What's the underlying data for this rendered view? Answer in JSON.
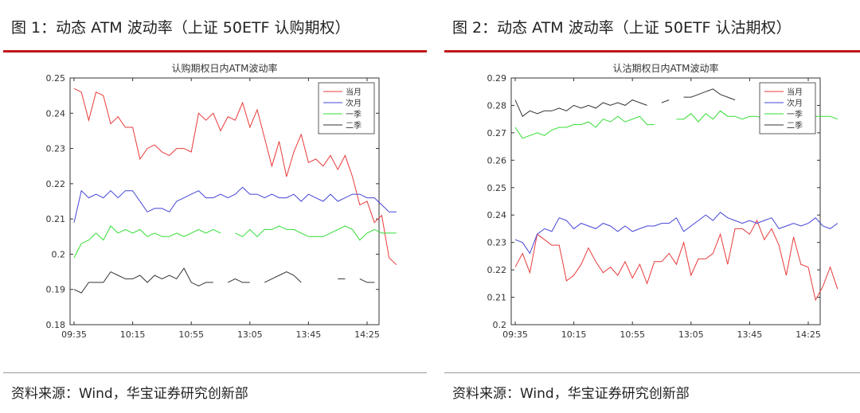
{
  "figures": [
    {
      "title": "图 1：动态 ATM 波动率（上证 50ETF 认购期权）",
      "source": "资料来源：Wind，华宝证券研究创新部"
    },
    {
      "title": "图 2：动态 ATM 波动率（上证 50ETF 认沽期权）",
      "source": "资料来源：Wind，华宝证券研究创新部"
    }
  ],
  "chart_data": [
    {
      "type": "line",
      "title": "认购期权日内ATM波动率",
      "x_ticks": [
        "09:35",
        "10:15",
        "10:55",
        "13:05",
        "13:45",
        "14:25"
      ],
      "x_tick_index": [
        0,
        8,
        16,
        24,
        32,
        40
      ],
      "ylim": [
        0.18,
        0.25
      ],
      "y_ticks": [
        "0.18",
        "0.19",
        "0.2",
        "0.21",
        "0.22",
        "0.23",
        "0.24",
        "0.25"
      ],
      "y_tick_values": [
        0.18,
        0.19,
        0.2,
        0.21,
        0.22,
        0.23,
        0.24,
        0.25
      ],
      "legend_position": "top-right",
      "grid": false,
      "series": [
        {
          "name": "当月",
          "color": "#e83a3a",
          "values": [
            0.247,
            0.246,
            0.238,
            0.246,
            0.245,
            0.237,
            0.239,
            0.236,
            0.236,
            0.227,
            0.23,
            0.231,
            0.229,
            0.228,
            0.23,
            0.23,
            0.229,
            0.24,
            0.238,
            0.24,
            0.235,
            0.239,
            0.238,
            0.243,
            0.236,
            0.241,
            0.233,
            0.225,
            0.232,
            0.222,
            0.229,
            0.234,
            0.226,
            0.227,
            0.225,
            0.228,
            0.224,
            0.228,
            0.222,
            0.214,
            0.215,
            0.209,
            0.211,
            0.199,
            0.197
          ]
        },
        {
          "name": "次月",
          "color": "#4444d8",
          "values": [
            0.209,
            0.218,
            0.216,
            0.217,
            0.216,
            0.218,
            0.216,
            0.218,
            0.218,
            0.215,
            0.212,
            0.213,
            0.213,
            0.212,
            0.215,
            0.216,
            0.217,
            0.218,
            0.216,
            0.216,
            0.217,
            0.216,
            0.217,
            0.219,
            0.217,
            0.217,
            0.216,
            0.217,
            0.216,
            0.216,
            0.217,
            0.215,
            0.217,
            0.216,
            0.215,
            0.217,
            0.215,
            0.216,
            0.217,
            0.217,
            0.216,
            0.216,
            0.214,
            0.212,
            0.212
          ]
        },
        {
          "name": "一季",
          "color": "#33dd33",
          "values": [
            0.199,
            0.203,
            0.204,
            0.206,
            0.204,
            0.208,
            0.206,
            0.207,
            0.206,
            0.207,
            0.205,
            0.206,
            0.205,
            0.205,
            0.206,
            0.205,
            0.206,
            0.207,
            0.206,
            0.207,
            0.206,
            null,
            0.206,
            0.205,
            0.207,
            0.205,
            0.207,
            0.207,
            0.208,
            0.207,
            0.207,
            0.206,
            0.205,
            0.205,
            0.205,
            0.206,
            0.207,
            0.208,
            0.207,
            0.204,
            0.206,
            0.207,
            0.206,
            0.206,
            0.206
          ]
        },
        {
          "name": "二季",
          "color": "#333333",
          "values": [
            0.19,
            0.189,
            0.192,
            0.192,
            0.192,
            0.195,
            0.194,
            0.193,
            0.193,
            0.194,
            0.192,
            0.194,
            0.193,
            0.194,
            0.193,
            0.196,
            0.192,
            0.191,
            0.192,
            0.192,
            null,
            0.192,
            0.193,
            0.192,
            0.192,
            null,
            0.192,
            0.193,
            0.194,
            0.195,
            0.194,
            0.192,
            null,
            null,
            0.193,
            null,
            0.193,
            0.193,
            null,
            0.193,
            0.192,
            0.192,
            null,
            0.193,
            null
          ]
        }
      ]
    },
    {
      "type": "line",
      "title": "认沽期权日内ATM波动率",
      "x_ticks": [
        "09:35",
        "10:15",
        "10:55",
        "13:05",
        "13:45",
        "14:25"
      ],
      "x_tick_index": [
        0,
        8,
        16,
        24,
        32,
        40
      ],
      "ylim": [
        0.2,
        0.29
      ],
      "y_ticks": [
        "0.2",
        "0.21",
        "0.22",
        "0.23",
        "0.24",
        "0.25",
        "0.26",
        "0.27",
        "0.28",
        "0.29"
      ],
      "y_tick_values": [
        0.2,
        0.21,
        0.22,
        0.23,
        0.24,
        0.25,
        0.26,
        0.27,
        0.28,
        0.29
      ],
      "legend_position": "top-right",
      "grid": false,
      "series": [
        {
          "name": "当月",
          "color": "#e83a3a",
          "values": [
            0.221,
            0.226,
            0.219,
            0.233,
            0.231,
            0.229,
            0.229,
            0.216,
            0.218,
            0.222,
            0.228,
            0.223,
            0.219,
            0.221,
            0.218,
            0.223,
            0.217,
            0.222,
            0.215,
            0.223,
            0.223,
            0.226,
            0.222,
            0.23,
            0.218,
            0.224,
            0.224,
            0.226,
            0.233,
            0.222,
            0.235,
            0.235,
            0.233,
            0.238,
            0.231,
            0.235,
            0.229,
            0.218,
            0.232,
            0.222,
            0.221,
            0.209,
            0.214,
            0.221,
            0.213
          ]
        },
        {
          "name": "次月",
          "color": "#4444d8",
          "values": [
            0.231,
            0.23,
            0.226,
            0.233,
            0.235,
            0.234,
            0.239,
            0.238,
            0.235,
            0.237,
            0.236,
            0.235,
            0.237,
            0.236,
            0.234,
            0.236,
            0.234,
            0.235,
            0.236,
            0.236,
            0.237,
            0.237,
            0.239,
            0.234,
            0.236,
            0.238,
            0.24,
            0.238,
            0.241,
            0.239,
            0.238,
            0.237,
            0.238,
            0.237,
            0.238,
            0.239,
            0.235,
            0.236,
            0.237,
            0.236,
            0.237,
            0.239,
            0.236,
            0.235,
            0.237
          ]
        },
        {
          "name": "一季",
          "color": "#33dd33",
          "values": [
            0.272,
            0.268,
            0.269,
            0.27,
            0.269,
            0.271,
            0.272,
            0.272,
            0.273,
            0.273,
            0.274,
            0.272,
            0.275,
            0.274,
            0.276,
            0.274,
            0.275,
            0.276,
            0.273,
            0.273,
            null,
            null,
            0.275,
            0.275,
            0.277,
            0.274,
            0.277,
            0.275,
            0.278,
            0.276,
            0.276,
            0.275,
            0.276,
            0.276,
            0.275,
            0.274,
            0.273,
            0.273,
            0.272,
            0.274,
            0.275,
            0.276,
            0.276,
            0.276,
            0.275
          ]
        },
        {
          "name": "二季",
          "color": "#333333",
          "values": [
            0.282,
            0.276,
            0.278,
            0.277,
            0.278,
            0.278,
            0.279,
            0.278,
            0.28,
            0.279,
            0.28,
            0.279,
            0.281,
            0.28,
            0.281,
            0.28,
            0.282,
            0.281,
            0.28,
            null,
            0.281,
            0.282,
            null,
            0.283,
            0.283,
            0.284,
            0.285,
            0.286,
            0.284,
            0.283,
            0.282,
            null,
            0.283,
            null,
            null,
            0.284,
            null,
            0.282,
            null,
            null,
            null,
            null,
            null,
            null,
            null
          ]
        }
      ]
    }
  ]
}
